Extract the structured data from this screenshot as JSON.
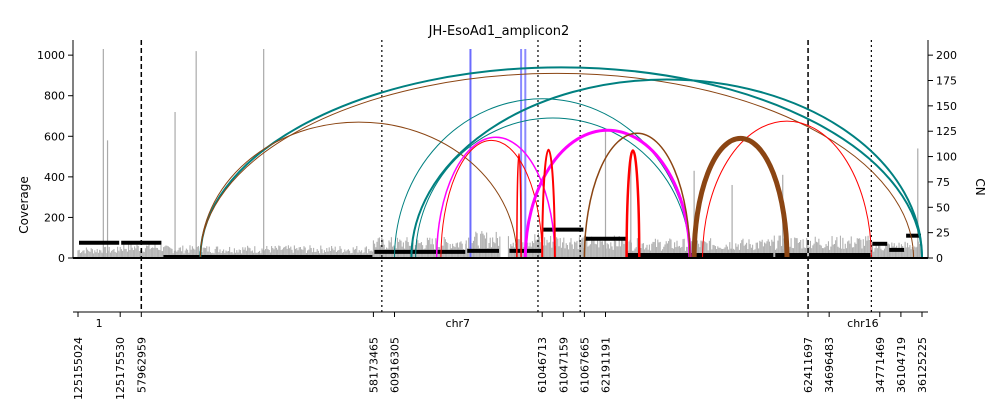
{
  "chart_data": {
    "type": "amplicon-arc-plot",
    "title": "JH-EsoAd1_amplicon2",
    "ylabel_left": "Coverage",
    "ylabel_right": "CN",
    "ylim_left": [
      0,
      1050
    ],
    "ylim_right": [
      0,
      210
    ],
    "yticks_left": [
      0,
      200,
      400,
      600,
      800,
      1000
    ],
    "yticks_right": [
      0,
      25,
      50,
      75,
      100,
      125,
      150,
      175,
      200
    ],
    "chromosome_labels": [
      {
        "name": "1",
        "pos": 0.5
      },
      {
        "name": "chr7",
        "pos": 9.0
      },
      {
        "name": "chr16",
        "pos": 18.6
      }
    ],
    "segments": [
      {
        "start": 0,
        "end": 1,
        "cn": 15,
        "coverage_level": 40
      },
      {
        "start": 1,
        "end": 2,
        "cn": 15,
        "coverage_level": 55
      },
      {
        "start": 2,
        "end": 7,
        "cn": 1,
        "coverage_level": 45
      },
      {
        "start": 7,
        "end": 9.2,
        "cn": 6,
        "coverage_level": 75
      },
      {
        "start": 9.2,
        "end": 10,
        "cn": 7,
        "coverage_level": 95
      },
      {
        "start": 10.2,
        "end": 11,
        "cn": 7,
        "coverage_level": 95
      },
      {
        "start": 11,
        "end": 12,
        "cn": 28,
        "coverage_level": 85
      },
      {
        "start": 12,
        "end": 13,
        "cn": 19,
        "coverage_level": 80
      },
      {
        "start": 13,
        "end": 16.5,
        "cn": 3,
        "coverage_level": 70
      },
      {
        "start": 16.5,
        "end": 17.3,
        "cn": 3,
        "coverage_level": 80
      },
      {
        "start": 17.3,
        "end": 18.8,
        "cn": 3,
        "coverage_level": 80
      },
      {
        "start": 18.8,
        "end": 19.2,
        "cn": 14,
        "coverage_level": 60
      },
      {
        "start": 19.2,
        "end": 19.6,
        "cn": 8,
        "coverage_level": 60
      },
      {
        "start": 19.6,
        "end": 20,
        "cn": 22,
        "coverage_level": 60
      }
    ],
    "breakpoint_ticks": [
      {
        "pos": 0,
        "label": "125155024"
      },
      {
        "pos": 1,
        "label": "125175530"
      },
      {
        "pos": 1.5,
        "label": "57962959"
      },
      {
        "pos": 7,
        "label": "58173465"
      },
      {
        "pos": 7.5,
        "label": "60916305"
      },
      {
        "pos": 11,
        "label": "61046713"
      },
      {
        "pos": 11.5,
        "label": "61047159"
      },
      {
        "pos": 12,
        "label": "61067665"
      },
      {
        "pos": 12.5,
        "label": "62191191"
      },
      {
        "pos": 17.3,
        "label": "62411697"
      },
      {
        "pos": 17.8,
        "label": "34696483"
      },
      {
        "pos": 19,
        "label": "34771469"
      },
      {
        "pos": 19.5,
        "label": "36104719"
      },
      {
        "pos": 20,
        "label": "36125225"
      }
    ],
    "chromosome_boundaries": [
      1.5,
      17.3
    ],
    "segment_boundaries": [
      7.2,
      10.9,
      11.9,
      18.8
    ],
    "peaks": [
      {
        "pos": 0.6,
        "coverage": 1030
      },
      {
        "pos": 0.7,
        "coverage": 580
      },
      {
        "pos": 2.3,
        "coverage": 720
      },
      {
        "pos": 2.8,
        "coverage": 1020
      },
      {
        "pos": 4.4,
        "coverage": 1030
      },
      {
        "pos": 12.5,
        "coverage": 630
      },
      {
        "pos": 13.1,
        "coverage": 520
      },
      {
        "pos": 14.6,
        "coverage": 430
      },
      {
        "pos": 15.5,
        "coverage": 360
      },
      {
        "pos": 16.7,
        "coverage": 410
      },
      {
        "pos": 19.9,
        "coverage": 540
      }
    ],
    "discordant_reads": [
      {
        "pos": 9.3,
        "coverage": 1030,
        "color": "#6b6bff"
      },
      {
        "pos": 10.5,
        "coverage": 1030,
        "color": "#8a8aff"
      },
      {
        "pos": 10.6,
        "coverage": 1030,
        "color": "#8a8aff"
      }
    ],
    "arcs": [
      {
        "start": 2.9,
        "end": 20.0,
        "peak_cn": 188,
        "color": "#008080",
        "weight": 2
      },
      {
        "start": 2.9,
        "end": 19.8,
        "peak_cn": 182,
        "color": "#8B4513",
        "weight": 1
      },
      {
        "start": 7.9,
        "end": 20.0,
        "peak_cn": 176,
        "color": "#008080",
        "weight": 2
      },
      {
        "start": 7.5,
        "end": 14.5,
        "peak_cn": 157,
        "color": "#008080",
        "weight": 1
      },
      {
        "start": 2.9,
        "end": 10.4,
        "peak_cn": 134,
        "color": "#8B4513",
        "weight": 1
      },
      {
        "start": 8.0,
        "end": 14.5,
        "peak_cn": 138,
        "color": "#008080",
        "weight": 1
      },
      {
        "start": 8.5,
        "end": 11.3,
        "peak_cn": 119,
        "color": "#ff00ff",
        "weight": 1.5
      },
      {
        "start": 8.6,
        "end": 11.0,
        "peak_cn": 116,
        "color": "#ff0000",
        "weight": 1
      },
      {
        "start": 10.6,
        "end": 14.5,
        "peak_cn": 126,
        "color": "#ff00ff",
        "weight": 3
      },
      {
        "start": 12.0,
        "end": 14.5,
        "peak_cn": 123,
        "color": "#8B4513",
        "weight": 1.5
      },
      {
        "start": 14.8,
        "end": 18.8,
        "peak_cn": 135,
        "color": "#ff0000",
        "weight": 1
      },
      {
        "start": 11.0,
        "end": 11.3,
        "peak_cn": 107,
        "color": "#ff0000",
        "weight": 2
      },
      {
        "start": 10.4,
        "end": 10.5,
        "peak_cn": 103,
        "color": "#ff0000",
        "weight": 1.5
      },
      {
        "start": 13.0,
        "end": 13.3,
        "peak_cn": 106,
        "color": "#ff0000",
        "weight": 2.5
      },
      {
        "start": 14.6,
        "end": 16.8,
        "peak_cn": 118,
        "color": "#8B4513",
        "weight": 5
      }
    ]
  }
}
